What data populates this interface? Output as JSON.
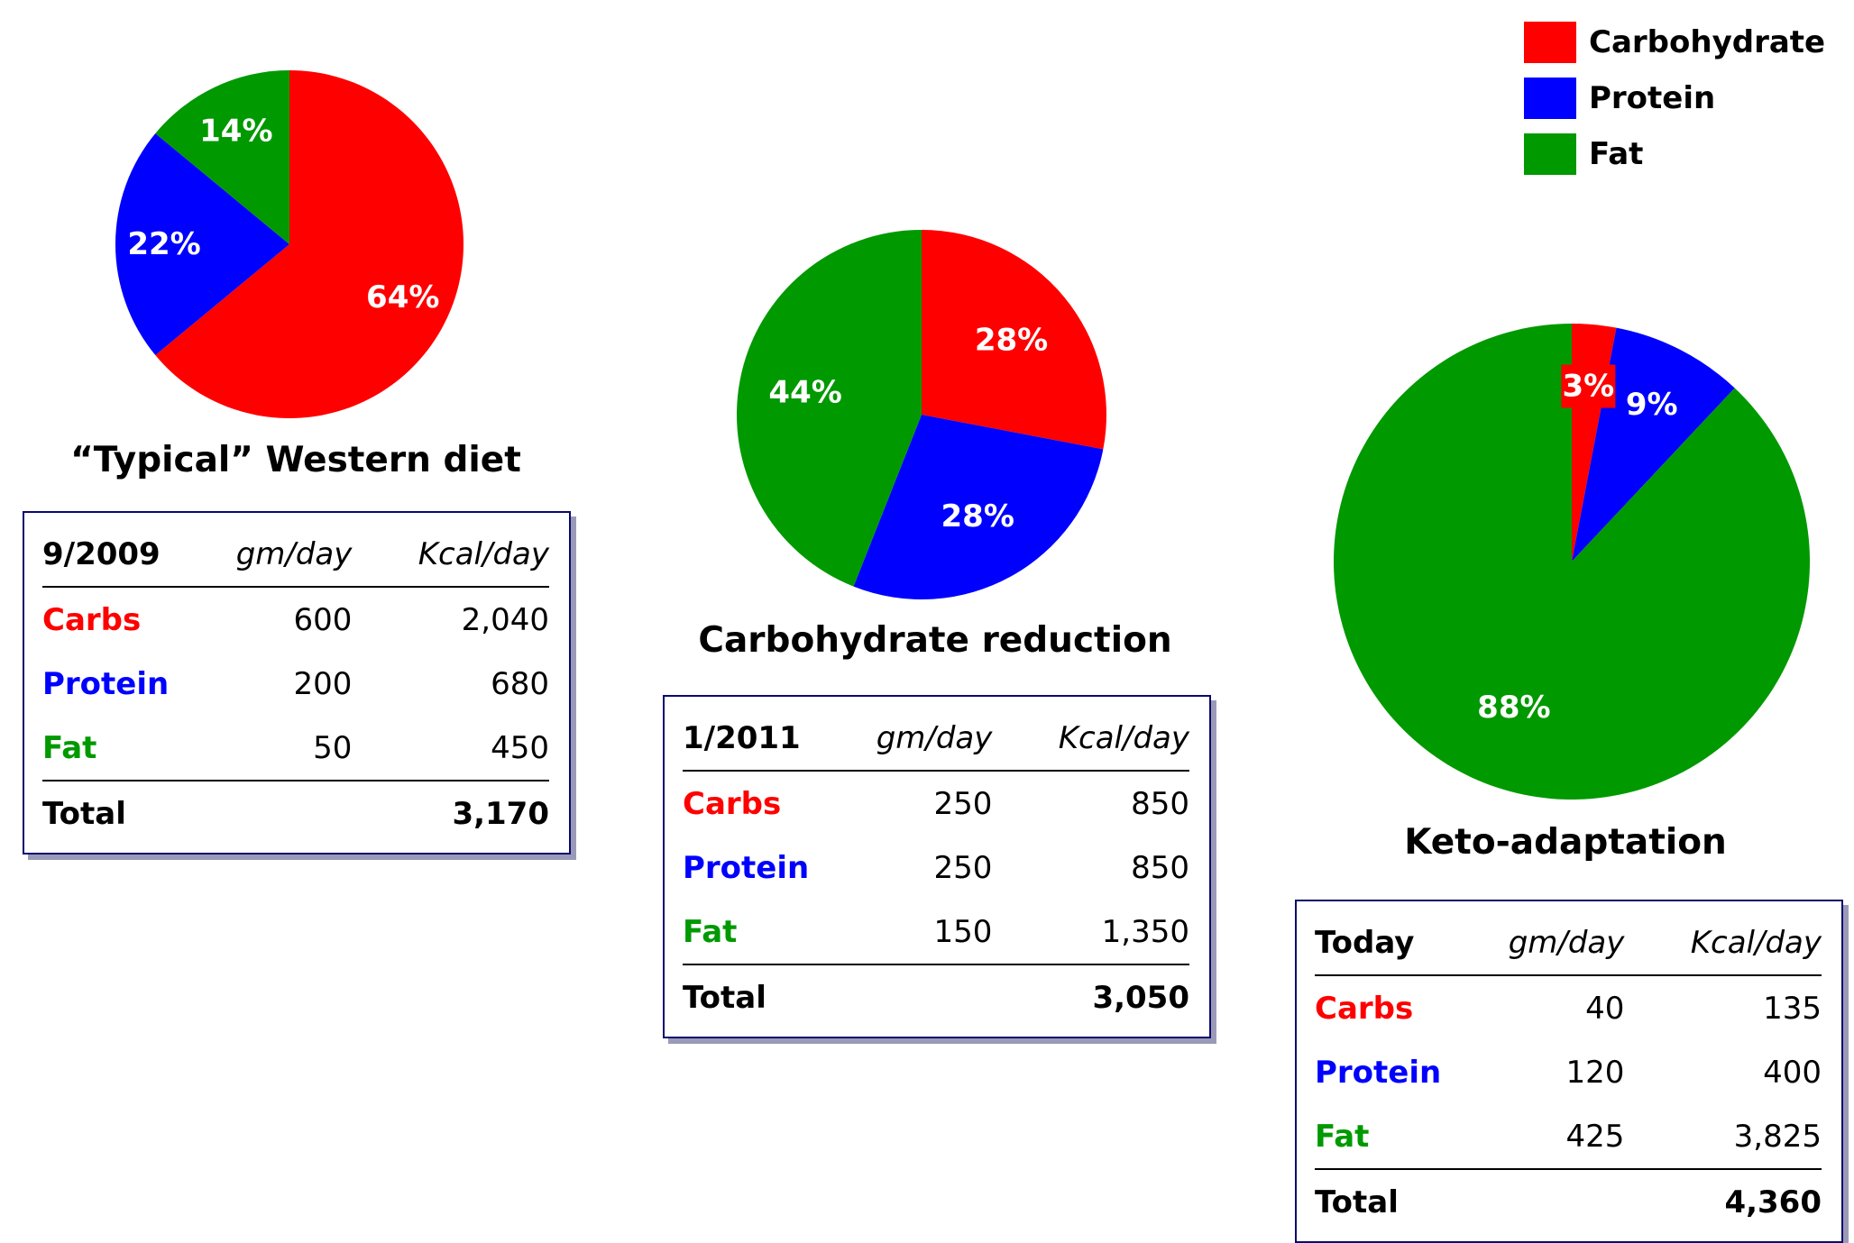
{
  "legend": {
    "items": [
      {
        "label": "Carbohydrate",
        "color": "#ff0000"
      },
      {
        "label": "Protein",
        "color": "#0000ff"
      },
      {
        "label": "Fat",
        "color": "#009900"
      }
    ]
  },
  "chart_data": [
    {
      "type": "pie",
      "title": "“Typical” Western diet",
      "labels": [
        "Carbohydrate",
        "Protein",
        "Fat"
      ],
      "values": [
        64,
        22,
        14
      ],
      "value_labels": [
        "64%",
        "22%",
        "14%"
      ],
      "colors": [
        "#ff0000",
        "#0000ff",
        "#009900"
      ],
      "table": {
        "date": "9/2009",
        "col_gm": "gm/day",
        "col_kcal": "Kcal/day",
        "rows": [
          {
            "name": "Carbs",
            "gm": "600",
            "kcal": "2,040",
            "color": "#ff0000"
          },
          {
            "name": "Protein",
            "gm": "200",
            "kcal": "680",
            "color": "#0000ff"
          },
          {
            "name": "Fat",
            "gm": "50",
            "kcal": "450",
            "color": "#009900"
          }
        ],
        "total_label": "Total",
        "total": "3,170"
      }
    },
    {
      "type": "pie",
      "title": "Carbohydrate reduction",
      "labels": [
        "Carbohydrate",
        "Protein",
        "Fat"
      ],
      "values": [
        28,
        28,
        44
      ],
      "value_labels": [
        "28%",
        "28%",
        "44%"
      ],
      "colors": [
        "#ff0000",
        "#0000ff",
        "#009900"
      ],
      "table": {
        "date": "1/2011",
        "col_gm": "gm/day",
        "col_kcal": "Kcal/day",
        "rows": [
          {
            "name": "Carbs",
            "gm": "250",
            "kcal": "850",
            "color": "#ff0000"
          },
          {
            "name": "Protein",
            "gm": "250",
            "kcal": "850",
            "color": "#0000ff"
          },
          {
            "name": "Fat",
            "gm": "150",
            "kcal": "1,350",
            "color": "#009900"
          }
        ],
        "total_label": "Total",
        "total": "3,050"
      }
    },
    {
      "type": "pie",
      "title": "Keto-adaptation",
      "labels": [
        "Carbohydrate",
        "Protein",
        "Fat"
      ],
      "values": [
        3,
        9,
        88
      ],
      "value_labels": [
        "3%",
        "9%",
        "88%"
      ],
      "colors": [
        "#ff0000",
        "#0000ff",
        "#009900"
      ],
      "table": {
        "date": "Today",
        "col_gm": "gm/day",
        "col_kcal": "Kcal/day",
        "rows": [
          {
            "name": "Carbs",
            "gm": "40",
            "kcal": "135",
            "color": "#ff0000"
          },
          {
            "name": "Protein",
            "gm": "120",
            "kcal": "400",
            "color": "#0000ff"
          },
          {
            "name": "Fat",
            "gm": "425",
            "kcal": "3,825",
            "color": "#009900"
          }
        ],
        "total_label": "Total",
        "total": "4,360"
      }
    }
  ]
}
